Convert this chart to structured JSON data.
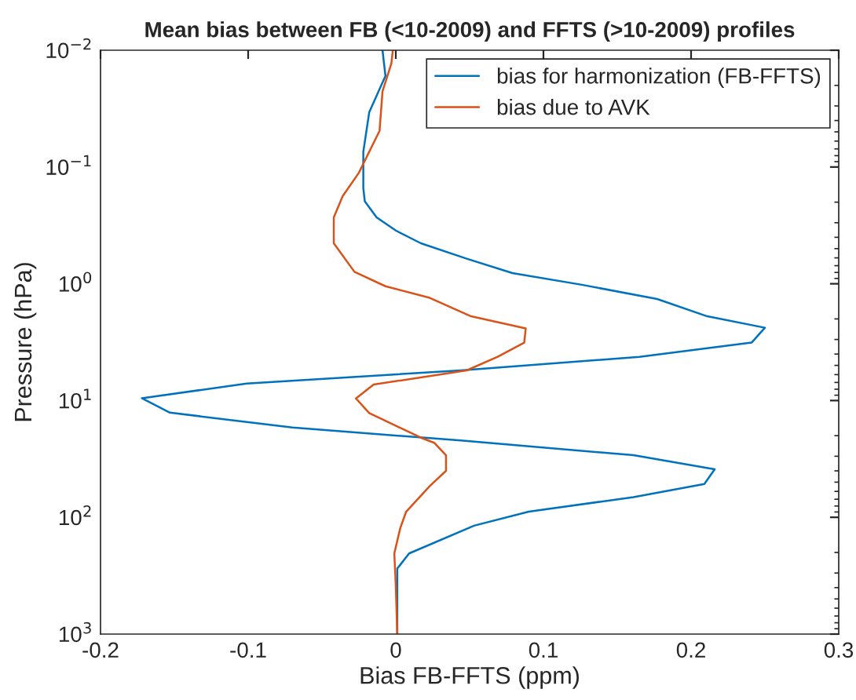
{
  "chart_data": {
    "type": "line",
    "title": "Mean bias between FB (<10-2009) and FFTS (>10-2009) profiles",
    "xlabel": "Bias FB-FFTS (ppm)",
    "ylabel": "Pressure (hPa)",
    "log": "y",
    "xlim": [
      -0.2,
      0.3
    ],
    "xticks": [
      -0.2,
      -0.1,
      0,
      0.1,
      0.2,
      0.3
    ],
    "ylim": [
      1000,
      0.01
    ],
    "yticks": [
      {
        "value": 0.01,
        "label": "10$^{−2}$"
      },
      {
        "value": 0.1,
        "label": "10$^{−1}$"
      },
      {
        "value": 1,
        "label": "10$^{0}$"
      },
      {
        "value": 10,
        "label": "10$^{1}$"
      },
      {
        "value": 100,
        "label": "10$^{2}$"
      },
      {
        "value": 1000,
        "label": "10$^{3}$"
      }
    ],
    "legend": "top right",
    "grid": false,
    "marker": "none",
    "line_style": "solid",
    "series": [
      {
        "name": "bias for harmonization (FB-FFTS)",
        "color": "#0072bd",
        "x": [
          -0.009,
          -0.007,
          -0.018,
          -0.022,
          -0.022,
          -0.021,
          -0.013,
          0.0,
          0.017,
          0.048,
          0.079,
          0.126,
          0.177,
          0.211,
          0.25,
          0.241,
          0.165,
          0.044,
          -0.101,
          -0.172,
          -0.153,
          -0.07,
          0.044,
          0.161,
          0.216,
          0.209,
          0.161,
          0.09,
          0.053,
          0.009,
          0.001,
          0.001,
          0.001
        ],
        "values": [
          0.01,
          0.0166,
          0.034,
          0.074,
          0.152,
          0.197,
          0.27,
          0.35,
          0.45,
          0.61,
          0.81,
          1.02,
          1.35,
          1.9,
          2.38,
          3.19,
          4.22,
          5.52,
          7.15,
          9.55,
          12.7,
          17,
          22,
          29.4,
          38.8,
          51.8,
          67.1,
          89.5,
          118,
          204,
          275,
          884,
          1000
        ]
      },
      {
        "name": "bias due to AVK",
        "color": "#d95319",
        "x": [
          -0.002,
          -0.003,
          -0.009,
          -0.011,
          -0.025,
          -0.036,
          -0.042,
          -0.042,
          -0.028,
          -0.007,
          0.023,
          0.051,
          0.088,
          0.087,
          0.069,
          0.048,
          -0.015,
          -0.027,
          -0.018,
          0.017,
          0.026,
          0.034,
          0.034,
          0.023,
          0.007,
          0.003,
          -0.001,
          0.0,
          0.001
        ],
        "values": [
          0.01,
          0.013,
          0.0225,
          0.049,
          0.112,
          0.178,
          0.27,
          0.45,
          0.79,
          1.05,
          1.32,
          1.9,
          2.41,
          3.19,
          4.22,
          5.52,
          7.3,
          9.6,
          12.8,
          20.8,
          23,
          29.4,
          40,
          54,
          89.5,
          124,
          204,
          388,
          1000
        ]
      }
    ]
  }
}
